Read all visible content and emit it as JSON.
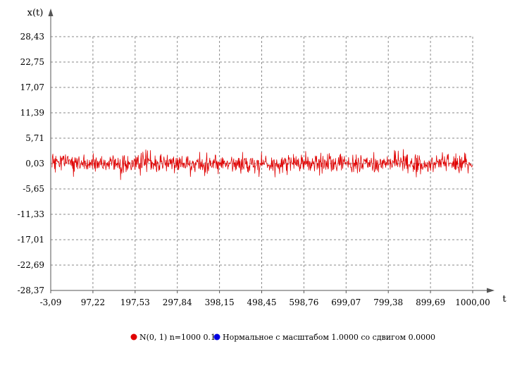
{
  "chart_data": {
    "type": "line",
    "title": "",
    "xlabel": "t",
    "ylabel": "x(t)",
    "xlim": [
      -3.09,
      1000.0
    ],
    "ylim": [
      -28.37,
      28.43
    ],
    "x_ticks": [
      -3.09,
      97.22,
      197.53,
      297.84,
      398.15,
      498.45,
      598.76,
      699.07,
      799.38,
      899.69,
      1000.0
    ],
    "x_tick_labels": [
      "-3,09",
      "97,22",
      "197,53",
      "297,84",
      "398,15",
      "498,45",
      "598,76",
      "699,07",
      "799,38",
      "899,69",
      "1000,00"
    ],
    "y_ticks": [
      28.43,
      22.75,
      17.07,
      11.39,
      5.71,
      0.03,
      -5.65,
      -11.33,
      -17.01,
      -22.69,
      -28.37
    ],
    "y_tick_labels": [
      "28,43",
      "22,75",
      "17,07",
      "11,39",
      "5,71",
      "0,03",
      "-5,65",
      "-11,33",
      "-17,01",
      "-22,69",
      "-28,37"
    ],
    "grid": true,
    "legend_position": "bottom-center",
    "series": [
      {
        "name": "N(0, 1) n=1000 0.1",
        "color": "#e00000",
        "n": 1000,
        "x_start": 0,
        "x_step": 1,
        "mean": 0.03,
        "std_dev": 1.0
      },
      {
        "name": "Нормальное с масштабом 1.0000 со сдвигом 0.0000",
        "color": "#0000e0"
      }
    ]
  }
}
